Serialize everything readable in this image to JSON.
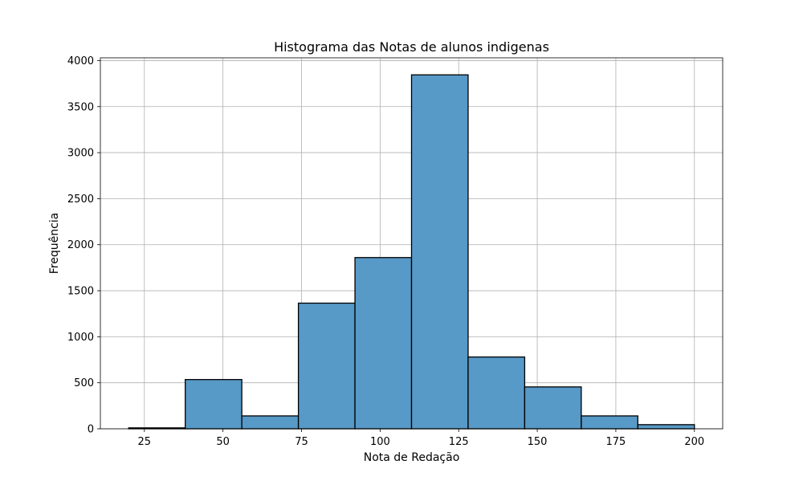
{
  "chart_data": {
    "type": "bar",
    "subtype": "histogram",
    "title": "Histograma das Notas de alunos indigenas",
    "xlabel": "Nota de Redação",
    "ylabel": "Frequência",
    "bin_edges": [
      20,
      38,
      56,
      74,
      92,
      110,
      128,
      146,
      164,
      182,
      200
    ],
    "values": [
      10,
      535,
      140,
      1365,
      1860,
      3845,
      780,
      455,
      140,
      45
    ],
    "xlim": [
      11,
      209
    ],
    "ylim": [
      0,
      4030
    ],
    "xticks": [
      25,
      50,
      75,
      100,
      125,
      150,
      175,
      200
    ],
    "yticks": [
      0,
      500,
      1000,
      1500,
      2000,
      2500,
      3000,
      3500,
      4000
    ],
    "bar_color": "#5799c7",
    "edge_color": "#000000",
    "grid": true
  }
}
